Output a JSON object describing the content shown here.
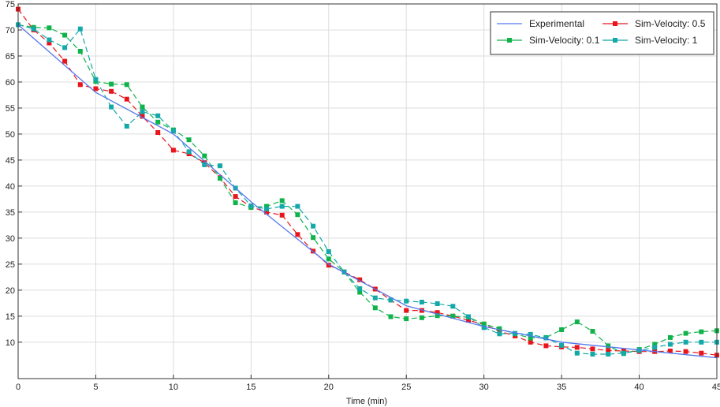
{
  "chart_data": {
    "type": "line",
    "title": "",
    "xlabel": "Time (min)",
    "ylabel": "",
    "xlim": [
      0,
      45
    ],
    "ylim": [
      3,
      75
    ],
    "xticks": [
      0,
      5,
      10,
      15,
      20,
      25,
      30,
      35,
      40,
      45
    ],
    "yticks": [
      10,
      15,
      20,
      25,
      30,
      35,
      40,
      45,
      50,
      55,
      60,
      65,
      70,
      75
    ],
    "grid": true,
    "legend_position": "top-right",
    "series": [
      {
        "name": "Experimental",
        "color": "#5577ee",
        "style": "solid",
        "marker": "none",
        "x": [
          0,
          5,
          10,
          15,
          20,
          25,
          30,
          35,
          40,
          45
        ],
        "y": [
          71,
          58,
          50,
          37,
          25,
          17,
          13,
          10,
          8.5,
          7
        ]
      },
      {
        "name": "Sim-Velocity: 0.5",
        "color": "#e8161c",
        "style": "dashed",
        "marker": "square",
        "x": [
          0,
          1,
          2,
          3,
          4,
          5,
          6,
          7,
          8,
          9,
          10,
          11,
          12,
          13,
          14,
          15,
          16,
          17,
          18,
          19,
          20,
          21,
          22,
          23,
          24,
          25,
          26,
          27,
          28,
          29,
          30,
          31,
          32,
          33,
          34,
          35,
          36,
          37,
          38,
          39,
          40,
          41,
          42,
          43,
          44,
          45
        ],
        "y": [
          74,
          70,
          67.5,
          64,
          59.5,
          58.7,
          58.2,
          56.7,
          53.4,
          50.3,
          46.9,
          46.2,
          44.5,
          41.6,
          38,
          36,
          35,
          34.4,
          30.7,
          27.5,
          24.8,
          23.5,
          22,
          20.2,
          18.1,
          16.1,
          16.1,
          15.7,
          15,
          14.2,
          13.4,
          12.1,
          11.2,
          10,
          9.3,
          9.1,
          9,
          8.7,
          8.4,
          8.3,
          8.2,
          8.2,
          8.3,
          8.2,
          7.9,
          7.5
        ]
      },
      {
        "name": "Sim-Velocity: 0.1",
        "color": "#10b24a",
        "style": "dashed",
        "marker": "square",
        "x": [
          0,
          1,
          2,
          3,
          4,
          5,
          6,
          7,
          8,
          9,
          10,
          11,
          12,
          13,
          14,
          15,
          16,
          17,
          18,
          19,
          20,
          21,
          22,
          23,
          24,
          25,
          26,
          27,
          28,
          29,
          30,
          31,
          32,
          33,
          34,
          35,
          36,
          37,
          38,
          39,
          40,
          41,
          42,
          43,
          44,
          45
        ],
        "y": [
          71,
          70.5,
          70.4,
          69,
          65.9,
          60.1,
          59.6,
          59.5,
          55.2,
          52.3,
          50.8,
          48.9,
          45.8,
          41.5,
          36.8,
          35.9,
          36.1,
          37.2,
          34.5,
          30.1,
          26,
          23.5,
          19.6,
          16.6,
          14.9,
          14.5,
          14.7,
          15.1,
          15,
          14.8,
          13.5,
          12.6,
          11.6,
          10.8,
          10.9,
          12.4,
          13.9,
          12.1,
          9.3,
          7.8,
          8.6,
          9.6,
          10.9,
          11.7,
          12,
          12.2
        ]
      },
      {
        "name": "Sim-Velocity: 1",
        "color": "#14a8a8",
        "style": "dashed",
        "marker": "square",
        "x": [
          0,
          1,
          2,
          3,
          4,
          5,
          6,
          7,
          8,
          9,
          10,
          11,
          12,
          13,
          14,
          15,
          16,
          17,
          18,
          19,
          20,
          21,
          22,
          23,
          24,
          25,
          26,
          27,
          28,
          29,
          30,
          31,
          32,
          33,
          34,
          35,
          36,
          37,
          38,
          39,
          40,
          41,
          42,
          43,
          44,
          45
        ],
        "y": [
          71,
          70.2,
          68.1,
          66.6,
          70.2,
          60.5,
          55.2,
          51.5,
          54.3,
          53.5,
          50.6,
          46.6,
          44.1,
          43.9,
          39.6,
          36.2,
          35.6,
          36.1,
          36.1,
          32.3,
          27.4,
          23.5,
          20.3,
          18.5,
          18.1,
          17.9,
          17.7,
          17.4,
          16.9,
          14.9,
          12.8,
          11.6,
          11.7,
          11.5,
          10.8,
          9.4,
          7.9,
          7.7,
          7.7,
          7.9,
          8.4,
          9,
          9.6,
          10,
          10,
          10
        ]
      }
    ]
  }
}
